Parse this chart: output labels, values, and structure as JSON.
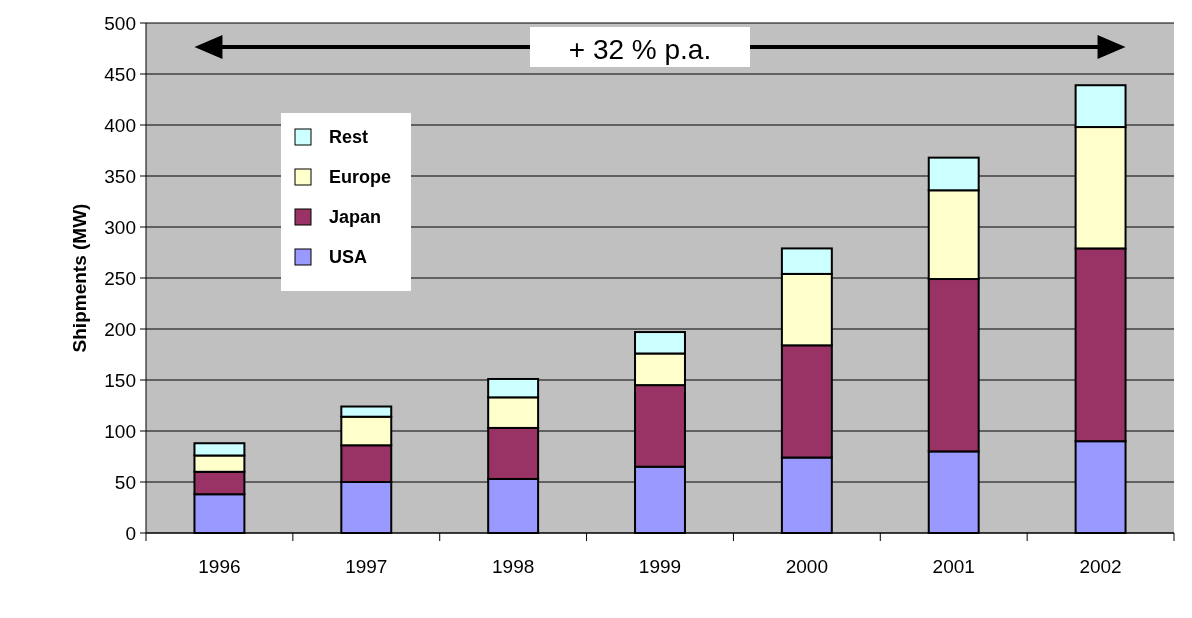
{
  "chart_data": {
    "type": "bar",
    "stacked": true,
    "ylabel": "Shipments (MW)",
    "categories": [
      "1996",
      "1997",
      "1998",
      "1999",
      "2000",
      "2001",
      "2002"
    ],
    "series": [
      {
        "name": "USA",
        "color": "#9999ff",
        "values": [
          38,
          50,
          53,
          65,
          74,
          80,
          90
        ]
      },
      {
        "name": "Japan",
        "color": "#993366",
        "values": [
          22,
          36,
          50,
          80,
          110,
          169,
          189
        ]
      },
      {
        "name": "Europe",
        "color": "#ffffcc",
        "values": [
          16,
          28,
          30,
          31,
          70,
          87,
          119
        ]
      },
      {
        "name": "Rest",
        "color": "#ccffff",
        "values": [
          12,
          10,
          18,
          21,
          25,
          32,
          41
        ]
      }
    ],
    "ylim": [
      0,
      500
    ],
    "yticks": [
      0,
      50,
      100,
      150,
      200,
      250,
      300,
      350,
      400,
      450,
      500
    ],
    "grid": "y",
    "legend": "top left",
    "annotations": [
      "+ 32 % p.a."
    ]
  }
}
